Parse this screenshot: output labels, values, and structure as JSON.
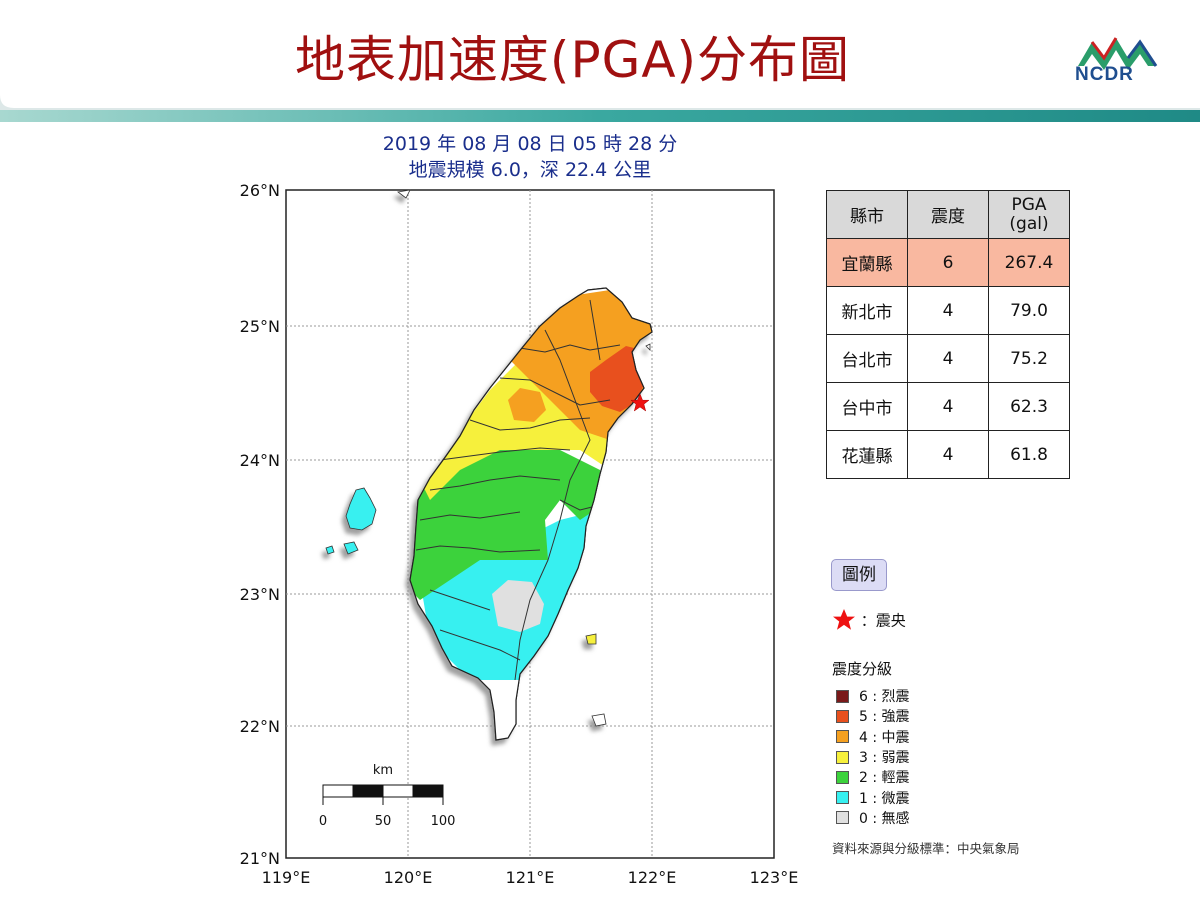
{
  "slide": {
    "title": "地表加速度(PGA)分布圖",
    "logo_text": "NCDR"
  },
  "map": {
    "title_line1": "2019 年 08 月 08 日 05 時 28 分",
    "title_line2": "地震規模 6.0，深 22.4 公里",
    "lat_ticks": [
      "26°N",
      "25°N",
      "24°N",
      "23°N",
      "22°N",
      "21°N"
    ],
    "lon_ticks": [
      "119°E",
      "120°E",
      "121°E",
      "122°E",
      "123°E"
    ],
    "lat_range": [
      21,
      26
    ],
    "lon_range": [
      119,
      123
    ],
    "epicenter": {
      "lon": 121.9,
      "lat": 24.43
    },
    "scale_bar": {
      "unit": "km",
      "labels": [
        "0",
        "50",
        "100"
      ]
    }
  },
  "table": {
    "headers": [
      "縣市",
      "震度",
      "PGA\n(gal)"
    ],
    "header_pga_line1": "PGA",
    "header_pga_line2": "(gal)",
    "rows": [
      {
        "county": "宜蘭縣",
        "intensity": "6",
        "pga": "267.4"
      },
      {
        "county": "新北市",
        "intensity": "4",
        "pga": "79.0"
      },
      {
        "county": "台北市",
        "intensity": "4",
        "pga": "75.2"
      },
      {
        "county": "台中市",
        "intensity": "4",
        "pga": "62.3"
      },
      {
        "county": "花蓮縣",
        "intensity": "4",
        "pga": "61.8"
      }
    ],
    "highlight_color": "#f9b8a0"
  },
  "legend": {
    "button_label": "圖例",
    "epicenter_label": "：震央",
    "heading": "震度分級",
    "items": [
      {
        "label": "6 : 烈震",
        "color": "#7a1a1a"
      },
      {
        "label": "5 : 強震",
        "color": "#e8501e"
      },
      {
        "label": "4 : 中震",
        "color": "#f5a020"
      },
      {
        "label": "3 : 弱震",
        "color": "#f6f03c"
      },
      {
        "label": "2 : 輕震",
        "color": "#3cd23c"
      },
      {
        "label": "1 : 微震",
        "color": "#37f0f0"
      },
      {
        "label": "0 : 無感",
        "color": "#e0e0e0"
      }
    ],
    "source": "資料來源與分級標準：中央氣象局"
  }
}
